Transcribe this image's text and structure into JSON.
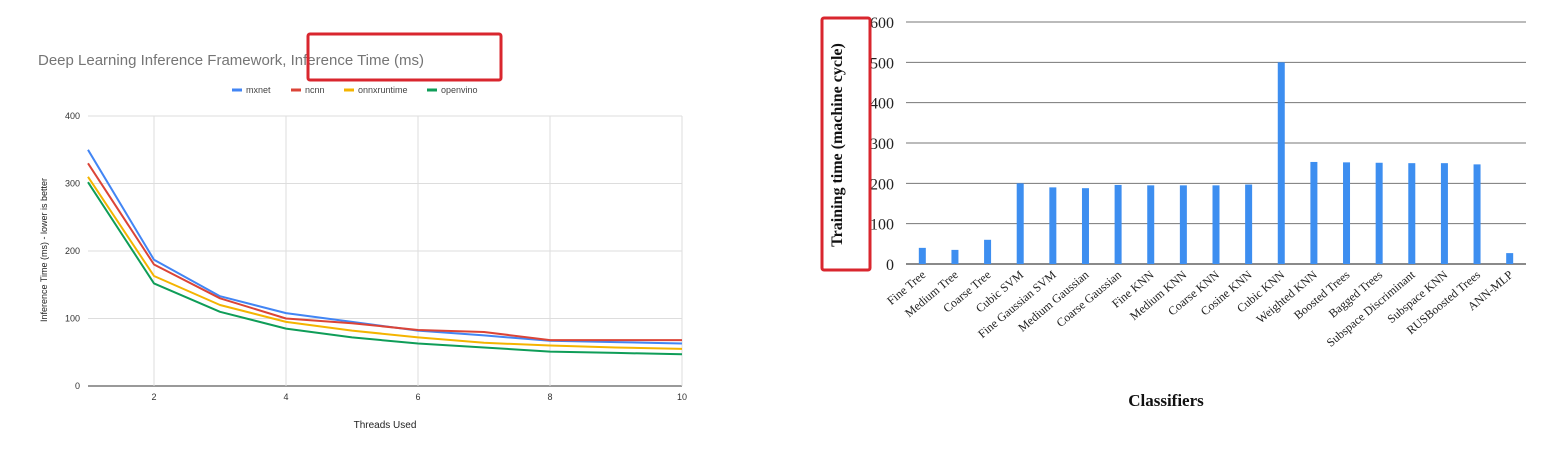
{
  "chart_data": [
    {
      "type": "line",
      "title": "Deep Learning Inference Framework, Inference Time (ms)",
      "xlabel": "Threads Used",
      "ylabel": "Inference Time (ms) - lower is better",
      "xlim": [
        1,
        10
      ],
      "ylim": [
        0,
        400
      ],
      "x_ticks": [
        2,
        4,
        6,
        8,
        10
      ],
      "y_ticks": [
        0,
        100,
        200,
        300,
        400
      ],
      "grid": true,
      "legend_position": "top",
      "x": [
        1,
        2,
        3,
        4,
        5,
        6,
        7,
        8,
        9,
        10
      ],
      "series": [
        {
          "name": "mxnet",
          "color": "#4285f4",
          "values": [
            350,
            187,
            133,
            108,
            95,
            82,
            75,
            67,
            65,
            63
          ]
        },
        {
          "name": "ncnn",
          "color": "#db4437",
          "values": [
            330,
            180,
            130,
            100,
            93,
            83,
            80,
            68,
            68,
            68
          ]
        },
        {
          "name": "onnxruntime",
          "color": "#f4b400",
          "values": [
            310,
            163,
            120,
            95,
            82,
            72,
            64,
            60,
            57,
            55
          ]
        },
        {
          "name": "openvino",
          "color": "#0f9d58",
          "values": [
            302,
            152,
            110,
            85,
            72,
            63,
            57,
            51,
            49,
            47
          ]
        }
      ]
    },
    {
      "type": "bar",
      "title": "",
      "xlabel": "Classifiers",
      "ylabel": "Training time (machine cycle)",
      "ylim": [
        0,
        600
      ],
      "y_ticks": [
        0,
        100,
        200,
        300,
        400,
        500,
        600
      ],
      "grid": true,
      "bar_color": "#3d8ef0",
      "categories": [
        "Fine Tree",
        "Medium Tree",
        "Coarse Tree",
        "Cubic SVM",
        "Fine Gaussian SVM",
        "Medium Gaussian",
        "Coarse Gaussian",
        "Fine KNN",
        "Medium KNN",
        "Coarse KNN",
        "Cosine KNN",
        "Cubic KNN",
        "Weighted KNN",
        "Boosted Trees",
        "Bagged Trees",
        "Subspace Discriminant",
        "Subspace KNN",
        "RUSBoosted Trees",
        "ANN-MLP"
      ],
      "values": [
        40,
        35,
        60,
        200,
        190,
        188,
        196,
        195,
        195,
        195,
        197,
        500,
        253,
        252,
        251,
        250,
        250,
        247,
        27
      ]
    }
  ],
  "annotations": {
    "highlight_color": "#d9262e"
  }
}
